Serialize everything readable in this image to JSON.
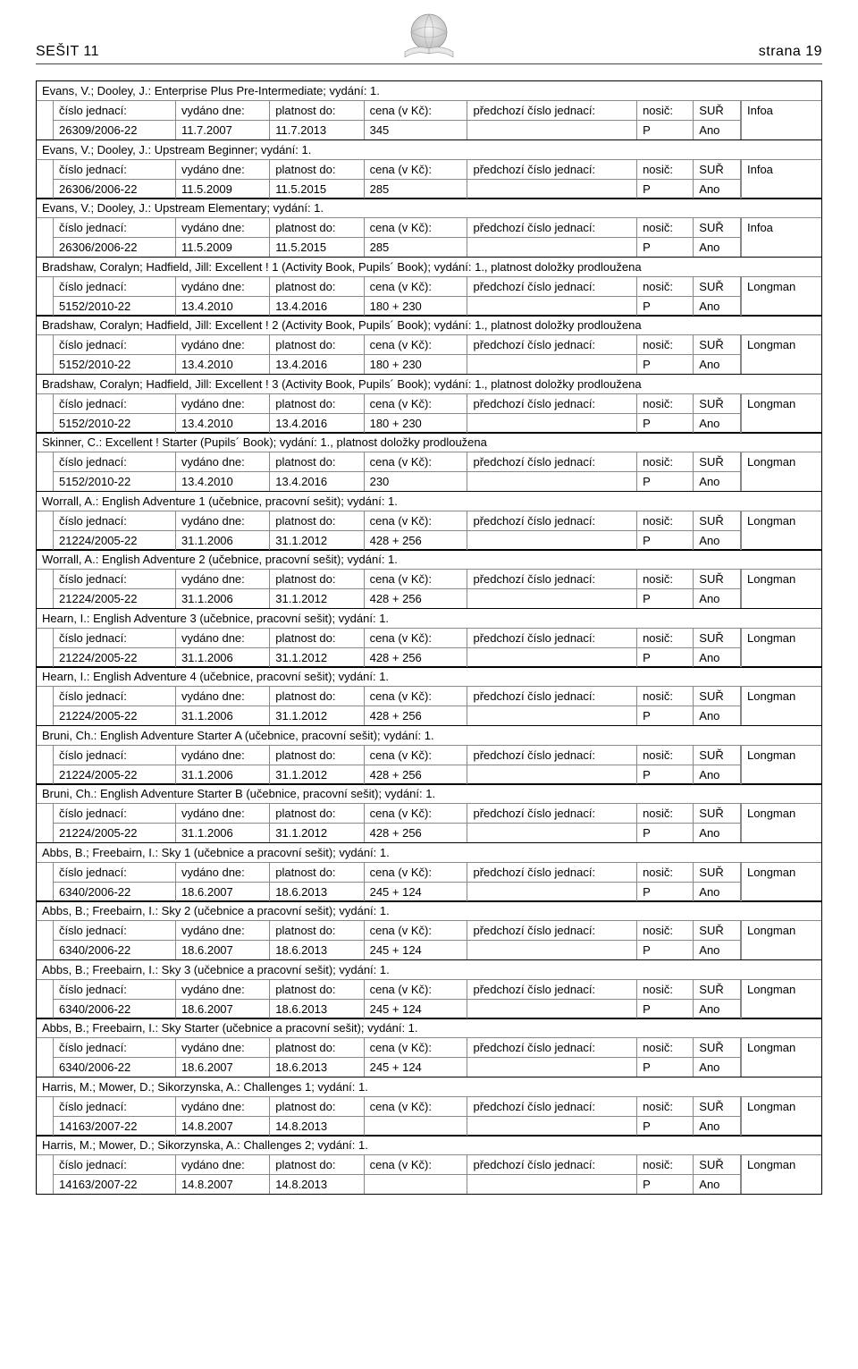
{
  "header": {
    "left": "SEŠIT 11",
    "right": "strana 19"
  },
  "columns": {
    "cislo": "číslo jednací:",
    "vydano": "vydáno dne:",
    "platnost": "platnost do:",
    "cena": "cena (v Kč):",
    "predchozi": "předchozí číslo jednací:",
    "nosic": "nosič:",
    "sur": "SUŘ"
  },
  "entries": [
    {
      "title": "Evans, V.; Dooley, J.: Enterprise Plus Pre-Intermediate; vydání: 1.",
      "publisher": "Infoa",
      "row": {
        "cislo": "26309/2006-22",
        "vydano": "11.7.2007",
        "platnost": "11.7.2013",
        "cena": "345",
        "predchozi": "",
        "nosic": "P",
        "sur": "Ano"
      }
    },
    {
      "title": "Evans, V.; Dooley, J.: Upstream Beginner; vydání: 1.",
      "publisher": "Infoa",
      "row": {
        "cislo": "26306/2006-22",
        "vydano": "11.5.2009",
        "platnost": "11.5.2015",
        "cena": "285",
        "predchozi": "",
        "nosic": "P",
        "sur": "Ano"
      }
    },
    {
      "title": "Evans, V.; Dooley, J.: Upstream Elementary; vydání: 1.",
      "publisher": "Infoa",
      "row": {
        "cislo": "26306/2006-22",
        "vydano": "11.5.2009",
        "platnost": "11.5.2015",
        "cena": "285",
        "predchozi": "",
        "nosic": "P",
        "sur": "Ano"
      }
    },
    {
      "title": "Bradshaw, Coralyn; Hadfield, Jill: Excellent ! 1 (Activity Book, Pupils´ Book); vydání: 1., platnost doložky prodloužena",
      "publisher": "Longman",
      "row": {
        "cislo": "5152/2010-22",
        "vydano": "13.4.2010",
        "platnost": "13.4.2016",
        "cena": "180 + 230",
        "predchozi": "",
        "nosic": "P",
        "sur": "Ano"
      }
    },
    {
      "title": "Bradshaw, Coralyn; Hadfield, Jill: Excellent ! 2 (Activity Book, Pupils´ Book); vydání: 1., platnost doložky prodloužena",
      "publisher": "Longman",
      "row": {
        "cislo": "5152/2010-22",
        "vydano": "13.4.2010",
        "platnost": "13.4.2016",
        "cena": "180 + 230",
        "predchozi": "",
        "nosic": "P",
        "sur": "Ano"
      }
    },
    {
      "title": "Bradshaw, Coralyn; Hadfield, Jill: Excellent ! 3 (Activity Book, Pupils´ Book); vydání: 1., platnost doložky prodloužena",
      "publisher": "Longman",
      "row": {
        "cislo": "5152/2010-22",
        "vydano": "13.4.2010",
        "platnost": "13.4.2016",
        "cena": "180 + 230",
        "predchozi": "",
        "nosic": "P",
        "sur": "Ano"
      }
    },
    {
      "title": "Skinner, C.: Excellent ! Starter (Pupils´ Book); vydání: 1., platnost doložky prodloužena",
      "publisher": "Longman",
      "row": {
        "cislo": "5152/2010-22",
        "vydano": "13.4.2010",
        "platnost": "13.4.2016",
        "cena": "230",
        "predchozi": "",
        "nosic": "P",
        "sur": "Ano"
      }
    },
    {
      "title": "Worrall, A.: English Adventure 1 (učebnice, pracovní sešit); vydání: 1.",
      "publisher": "Longman",
      "row": {
        "cislo": "21224/2005-22",
        "vydano": "31.1.2006",
        "platnost": "31.1.2012",
        "cena": "428 + 256",
        "predchozi": "",
        "nosic": "P",
        "sur": "Ano"
      }
    },
    {
      "title": "Worrall, A.: English Adventure 2 (učebnice, pracovní sešit); vydání: 1.",
      "publisher": "Longman",
      "row": {
        "cislo": "21224/2005-22",
        "vydano": "31.1.2006",
        "platnost": "31.1.2012",
        "cena": "428 + 256",
        "predchozi": "",
        "nosic": "P",
        "sur": "Ano"
      }
    },
    {
      "title": "Hearn, I.: English Adventure 3 (učebnice, pracovní sešit); vydání: 1.",
      "publisher": "Longman",
      "row": {
        "cislo": "21224/2005-22",
        "vydano": "31.1.2006",
        "platnost": "31.1.2012",
        "cena": "428 + 256",
        "predchozi": "",
        "nosic": "P",
        "sur": "Ano"
      }
    },
    {
      "title": "Hearn, I.: English Adventure 4 (učebnice, pracovní sešit); vydání: 1.",
      "publisher": "Longman",
      "row": {
        "cislo": "21224/2005-22",
        "vydano": "31.1.2006",
        "platnost": "31.1.2012",
        "cena": "428 + 256",
        "predchozi": "",
        "nosic": "P",
        "sur": "Ano"
      }
    },
    {
      "title": "Bruni, Ch.: English Adventure Starter A (učebnice, pracovní sešit); vydání: 1.",
      "publisher": "Longman",
      "row": {
        "cislo": "21224/2005-22",
        "vydano": "31.1.2006",
        "platnost": "31.1.2012",
        "cena": "428 + 256",
        "predchozi": "",
        "nosic": "P",
        "sur": "Ano"
      }
    },
    {
      "title": "Bruni, Ch.: English Adventure Starter B (učebnice, pracovní sešit); vydání: 1.",
      "publisher": "Longman",
      "row": {
        "cislo": "21224/2005-22",
        "vydano": "31.1.2006",
        "platnost": "31.1.2012",
        "cena": "428 + 256",
        "predchozi": "",
        "nosic": "P",
        "sur": "Ano"
      }
    },
    {
      "title": "Abbs, B.; Freebairn, I.: Sky 1 (učebnice a pracovní sešit); vydání: 1.",
      "publisher": "Longman",
      "row": {
        "cislo": "6340/2006-22",
        "vydano": "18.6.2007",
        "platnost": "18.6.2013",
        "cena": "245 + 124",
        "predchozi": "",
        "nosic": "P",
        "sur": "Ano"
      }
    },
    {
      "title": "Abbs, B.; Freebairn, I.: Sky 2 (učebnice a pracovní sešit); vydání: 1.",
      "publisher": "Longman",
      "row": {
        "cislo": "6340/2006-22",
        "vydano": "18.6.2007",
        "platnost": "18.6.2013",
        "cena": "245 + 124",
        "predchozi": "",
        "nosic": "P",
        "sur": "Ano"
      }
    },
    {
      "title": "Abbs, B.; Freebairn, I.: Sky 3 (učebnice a pracovní sešit); vydání: 1.",
      "publisher": "Longman",
      "row": {
        "cislo": "6340/2006-22",
        "vydano": "18.6.2007",
        "platnost": "18.6.2013",
        "cena": "245 + 124",
        "predchozi": "",
        "nosic": "P",
        "sur": "Ano"
      }
    },
    {
      "title": "Abbs, B.; Freebairn, I.: Sky Starter (učebnice a pracovní sešit); vydání: 1.",
      "publisher": "Longman",
      "row": {
        "cislo": "6340/2006-22",
        "vydano": "18.6.2007",
        "platnost": "18.6.2013",
        "cena": "245 + 124",
        "predchozi": "",
        "nosic": "P",
        "sur": "Ano"
      }
    },
    {
      "title": "Harris, M.; Mower, D.; Sikorzynska, A.: Challenges 1; vydání: 1.",
      "publisher": "Longman",
      "row": {
        "cislo": "14163/2007-22",
        "vydano": "14.8.2007",
        "platnost": "14.8.2013",
        "cena": "",
        "predchozi": "",
        "nosic": "P",
        "sur": "Ano"
      }
    },
    {
      "title": "Harris, M.; Mower, D.; Sikorzynska, A.: Challenges 2; vydání: 1.",
      "publisher": "Longman",
      "row": {
        "cislo": "14163/2007-22",
        "vydano": "14.8.2007",
        "platnost": "14.8.2013",
        "cena": "",
        "predchozi": "",
        "nosic": "P",
        "sur": "Ano"
      }
    }
  ]
}
